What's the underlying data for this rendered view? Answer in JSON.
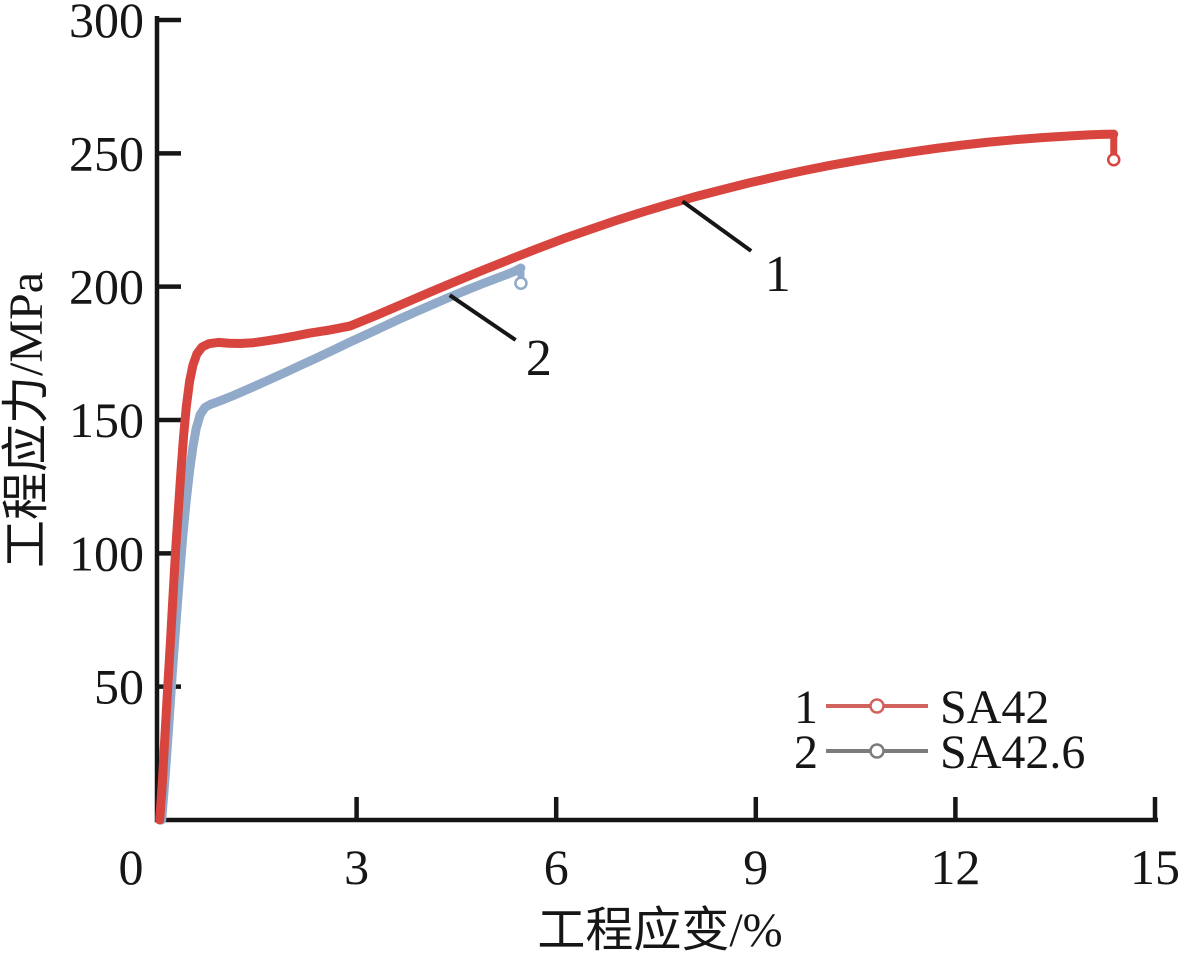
{
  "figure": {
    "background": "#ffffff",
    "axis_color": "#161616",
    "text_color": "#161616"
  },
  "chart_data": {
    "type": "line",
    "title": "",
    "xlabel": "工程应变/%",
    "ylabel": "工程应力/MPa",
    "xlim": [
      0,
      15
    ],
    "ylim": [
      0,
      300
    ],
    "xticks": [
      0,
      3,
      6,
      9,
      12,
      15
    ],
    "yticks": [
      50,
      100,
      150,
      200,
      250,
      300
    ],
    "grid": false,
    "legend_position": "lower-right",
    "series": [
      {
        "number": "1",
        "name": "SA42",
        "color": "#d8453f",
        "legend_color": "#d2625d",
        "points": [
          [
            0.04,
            0
          ],
          [
            0.08,
            14
          ],
          [
            0.12,
            32
          ],
          [
            0.16,
            49
          ],
          [
            0.2,
            66
          ],
          [
            0.24,
            84
          ],
          [
            0.28,
            101
          ],
          [
            0.32,
            116
          ],
          [
            0.36,
            131
          ],
          [
            0.4,
            144
          ],
          [
            0.44,
            155
          ],
          [
            0.49,
            164.5
          ],
          [
            0.54,
            170.5
          ],
          [
            0.6,
            174.8
          ],
          [
            0.68,
            177.4
          ],
          [
            0.78,
            178.6
          ],
          [
            0.92,
            179.1
          ],
          [
            1.08,
            178.8
          ],
          [
            1.25,
            178.7
          ],
          [
            1.45,
            179
          ],
          [
            1.65,
            179.7
          ],
          [
            1.85,
            180.5
          ],
          [
            2.05,
            181.4
          ],
          [
            2.3,
            182.6
          ],
          [
            2.6,
            183.8
          ],
          [
            2.9,
            185.2
          ],
          [
            3.3,
            189.3
          ],
          [
            3.7,
            193.6
          ],
          [
            4.1,
            197.9
          ],
          [
            4.5,
            202.1
          ],
          [
            4.9,
            206.2
          ],
          [
            5.3,
            210.2
          ],
          [
            5.7,
            214.1
          ],
          [
            6.1,
            217.9
          ],
          [
            6.5,
            221.4
          ],
          [
            6.9,
            224.8
          ],
          [
            7.3,
            228
          ],
          [
            7.7,
            231
          ],
          [
            8.1,
            233.8
          ],
          [
            8.5,
            236.4
          ],
          [
            8.9,
            238.9
          ],
          [
            9.3,
            241.2
          ],
          [
            9.7,
            243.4
          ],
          [
            10.1,
            245.4
          ],
          [
            10.5,
            247.2
          ],
          [
            10.9,
            248.9
          ],
          [
            11.3,
            250.4
          ],
          [
            11.7,
            251.8
          ],
          [
            12.1,
            253.1
          ],
          [
            12.5,
            254.2
          ],
          [
            12.9,
            255.1
          ],
          [
            13.3,
            255.9
          ],
          [
            13.7,
            256.5
          ],
          [
            14.0,
            256.9
          ],
          [
            14.2,
            257.1
          ],
          [
            14.38,
            257.2
          ]
        ],
        "fracture_drop": {
          "x": 14.38,
          "from": 257.2,
          "to": 249
        },
        "end_marker": [
          14.38,
          247.6
        ]
      },
      {
        "number": "2",
        "name": "SA42.6",
        "color": "#91aac9",
        "legend_color": "#7c7c7c",
        "points": [
          [
            0.07,
            0
          ],
          [
            0.11,
            12
          ],
          [
            0.15,
            26
          ],
          [
            0.19,
            40
          ],
          [
            0.23,
            55
          ],
          [
            0.27,
            69
          ],
          [
            0.31,
            82
          ],
          [
            0.35,
            95
          ],
          [
            0.39,
            107
          ],
          [
            0.44,
            120
          ],
          [
            0.49,
            131
          ],
          [
            0.54,
            140
          ],
          [
            0.59,
            147
          ],
          [
            0.65,
            152
          ],
          [
            0.72,
            154.7
          ],
          [
            0.8,
            155.8
          ],
          [
            0.95,
            157.2
          ],
          [
            1.15,
            159.2
          ],
          [
            1.4,
            161.9
          ],
          [
            1.65,
            164.7
          ],
          [
            1.9,
            167.5
          ],
          [
            2.15,
            170.4
          ],
          [
            2.4,
            173.3
          ],
          [
            2.65,
            176.2
          ],
          [
            2.9,
            179.2
          ],
          [
            3.15,
            182.1
          ],
          [
            3.4,
            185
          ],
          [
            3.65,
            187.9
          ],
          [
            3.9,
            190.7
          ],
          [
            4.15,
            193.4
          ],
          [
            4.4,
            196.1
          ],
          [
            4.65,
            198.7
          ],
          [
            4.9,
            201.2
          ],
          [
            5.1,
            203.1
          ],
          [
            5.25,
            204.5
          ],
          [
            5.38,
            205.8
          ],
          [
            5.47,
            207
          ]
        ],
        "fracture_drop": {
          "x": 5.47,
          "from": 207,
          "to": 202.5
        },
        "end_marker": [
          5.47,
          201.3
        ]
      }
    ],
    "annotations": [
      {
        "label": "1",
        "from": [
          7.9,
          232
        ],
        "to": [
          8.93,
          213.4
        ],
        "text_at": [
          9.33,
          205.5
        ]
      },
      {
        "label": "2",
        "from": [
          4.4,
          196.8
        ],
        "to": [
          5.39,
          180
        ],
        "text_at": [
          5.74,
          174
        ]
      }
    ]
  }
}
